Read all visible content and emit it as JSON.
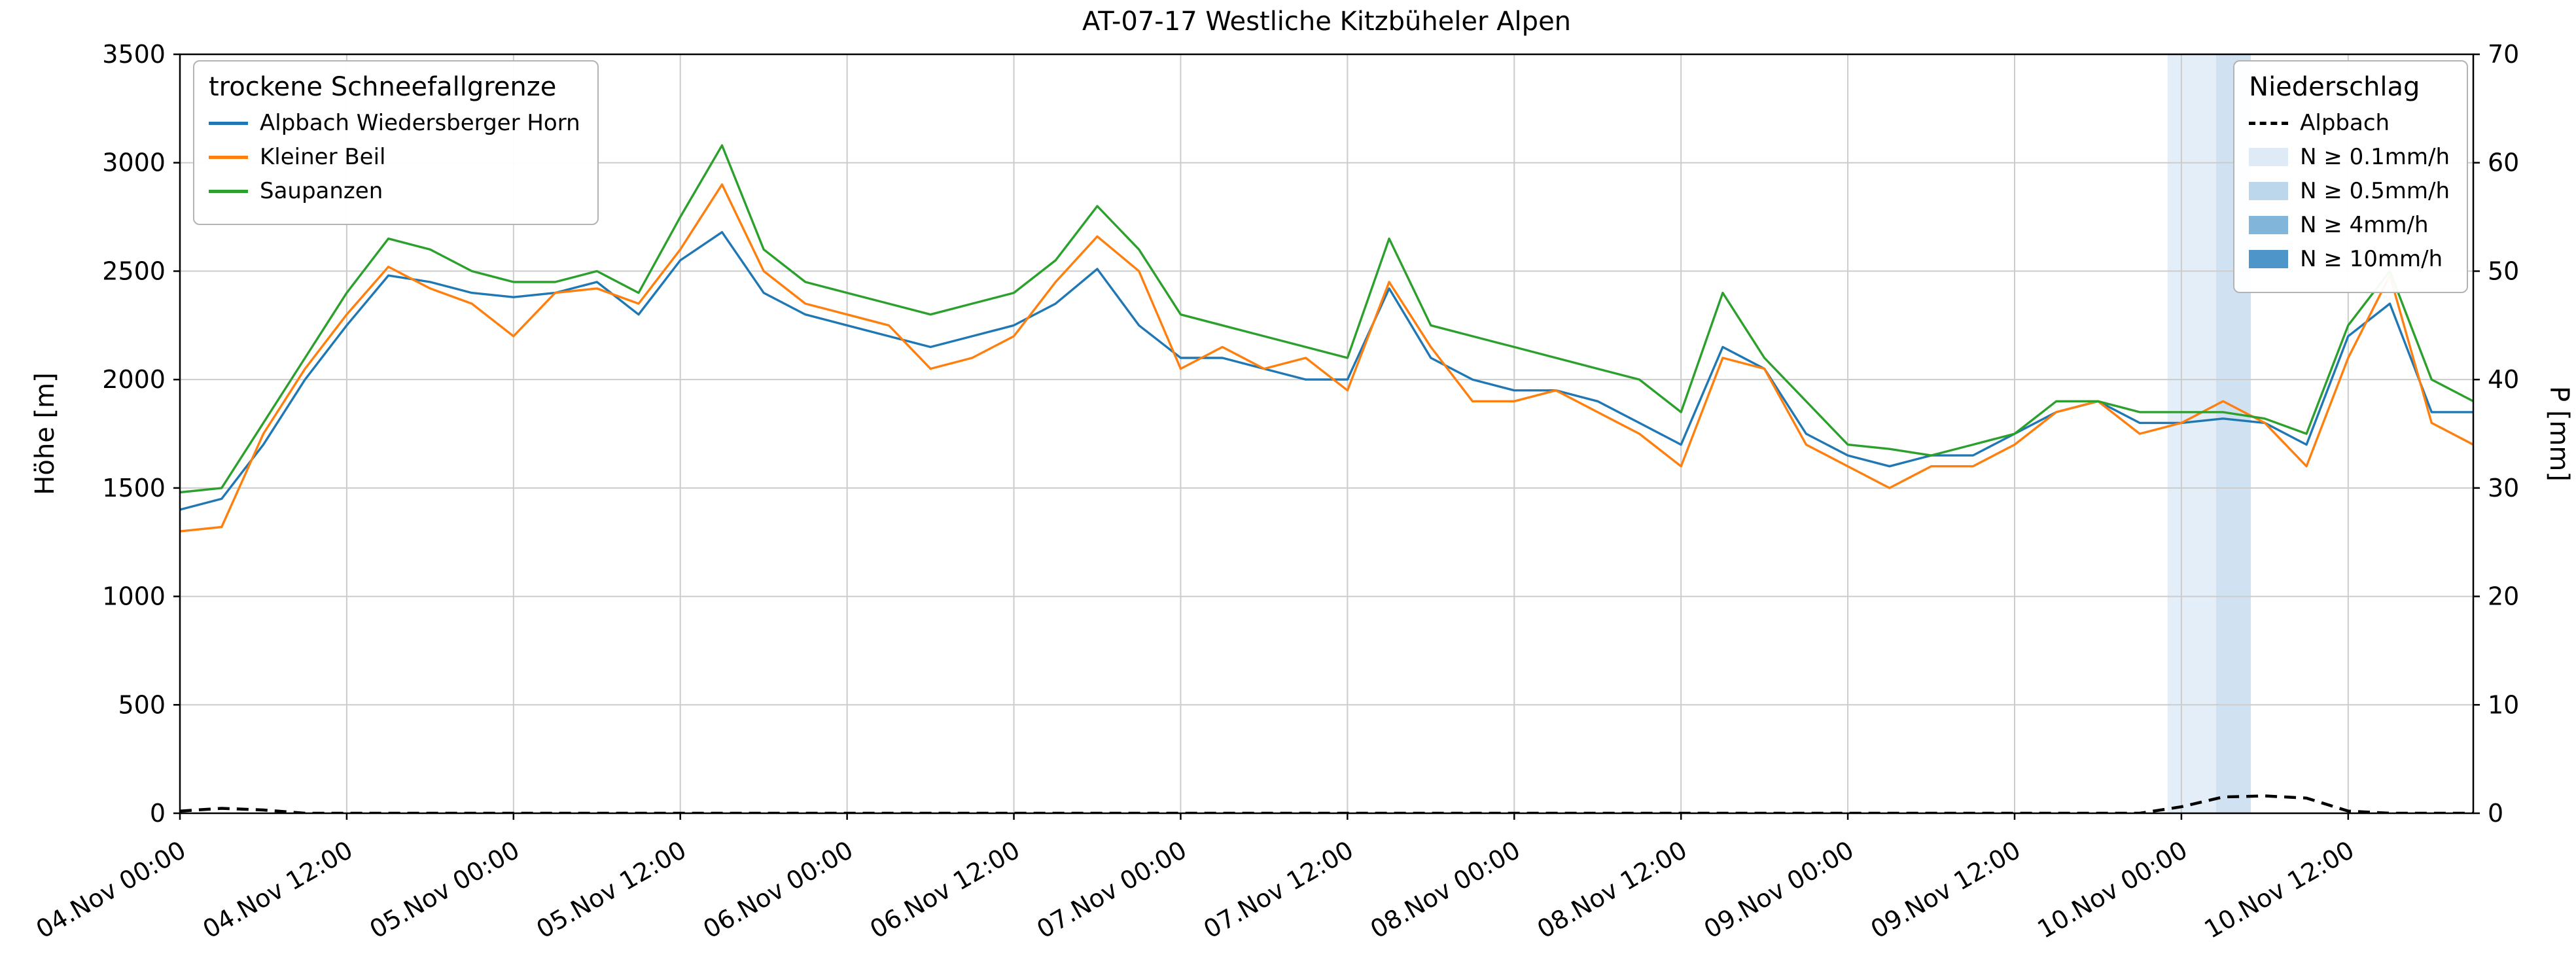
{
  "figure": {
    "title": "AT-07-17 Westliche Kitzbüheler Alpen"
  },
  "chart_data": {
    "type": "line",
    "title": "AT-07-17 Westliche Kitzbüheler Alpen",
    "xlabel": "",
    "ylabel_left": "Höhe [m]",
    "ylabel_right": "P [mm]",
    "ylim_left": [
      0,
      3500
    ],
    "ylim_right": [
      0,
      70
    ],
    "yticks_left": [
      0,
      500,
      1000,
      1500,
      2000,
      2500,
      3000,
      3500
    ],
    "yticks_right": [
      0,
      10,
      20,
      30,
      40,
      50,
      60,
      70
    ],
    "grid": true,
    "x_range_hours": [
      0,
      165
    ],
    "x_hours": [
      0,
      3,
      6,
      9,
      12,
      15,
      18,
      21,
      24,
      27,
      30,
      33,
      36,
      39,
      42,
      45,
      48,
      51,
      54,
      57,
      60,
      63,
      66,
      69,
      72,
      75,
      78,
      81,
      84,
      87,
      90,
      93,
      96,
      99,
      102,
      105,
      108,
      111,
      114,
      117,
      120,
      123,
      126,
      129,
      132,
      135,
      138,
      141,
      144,
      147,
      150,
      153,
      156,
      159,
      162,
      165
    ],
    "x_ticks": [
      {
        "hour": 0,
        "label": "04.Nov 00:00"
      },
      {
        "hour": 12,
        "label": "04.Nov 12:00"
      },
      {
        "hour": 24,
        "label": "05.Nov 00:00"
      },
      {
        "hour": 36,
        "label": "05.Nov 12:00"
      },
      {
        "hour": 48,
        "label": "06.Nov 00:00"
      },
      {
        "hour": 60,
        "label": "06.Nov 12:00"
      },
      {
        "hour": 72,
        "label": "07.Nov 00:00"
      },
      {
        "hour": 84,
        "label": "07.Nov 12:00"
      },
      {
        "hour": 96,
        "label": "08.Nov 00:00"
      },
      {
        "hour": 108,
        "label": "08.Nov 12:00"
      },
      {
        "hour": 120,
        "label": "09.Nov 00:00"
      },
      {
        "hour": 132,
        "label": "09.Nov 12:00"
      },
      {
        "hour": 144,
        "label": "10.Nov 00:00"
      },
      {
        "hour": 156,
        "label": "10.Nov 12:00"
      }
    ],
    "legend_left_title": "trockene Schneefallgrenze",
    "series": [
      {
        "id": "alpbach-wiedersberger-horn",
        "name": "Alpbach Wiedersberger Horn",
        "color": "#1f77b4",
        "axis": "left",
        "values": [
          1400,
          1450,
          1700,
          2000,
          2250,
          2480,
          2450,
          2400,
          2380,
          2400,
          2450,
          2300,
          2550,
          2680,
          2400,
          2300,
          2250,
          2200,
          2150,
          2200,
          2250,
          2350,
          2510,
          2250,
          2100,
          2100,
          2050,
          2000,
          2000,
          2420,
          2100,
          2000,
          1950,
          1950,
          1900,
          1800,
          1700,
          2150,
          2050,
          1750,
          1650,
          1600,
          1650,
          1650,
          1750,
          1850,
          1900,
          1800,
          1800,
          1820,
          1800,
          1700,
          2200,
          2350,
          1850,
          1850
        ]
      },
      {
        "id": "kleiner-beil",
        "name": "Kleiner Beil",
        "color": "#ff7f0e",
        "axis": "left",
        "values": [
          1300,
          1320,
          1750,
          2050,
          2300,
          2520,
          2420,
          2350,
          2200,
          2400,
          2420,
          2350,
          2600,
          2900,
          2500,
          2350,
          2300,
          2250,
          2050,
          2100,
          2200,
          2450,
          2660,
          2500,
          2050,
          2150,
          2050,
          2100,
          1950,
          2450,
          2150,
          1900,
          1900,
          1950,
          1850,
          1750,
          1600,
          2100,
          2050,
          1700,
          1600,
          1500,
          1600,
          1600,
          1700,
          1850,
          1900,
          1750,
          1800,
          1900,
          1800,
          1600,
          2100,
          2480,
          1800,
          1700
        ]
      },
      {
        "id": "saupanzen",
        "name": "Saupanzen",
        "color": "#2ca02c",
        "axis": "left",
        "values": [
          1480,
          1500,
          1800,
          2100,
          2400,
          2650,
          2600,
          2500,
          2450,
          2450,
          2500,
          2400,
          2750,
          3080,
          2600,
          2450,
          2400,
          2350,
          2300,
          2350,
          2400,
          2550,
          2800,
          2600,
          2300,
          2250,
          2200,
          2150,
          2100,
          2650,
          2250,
          2200,
          2150,
          2100,
          2050,
          2000,
          1850,
          2400,
          2100,
          1900,
          1700,
          1680,
          1650,
          1700,
          1750,
          1900,
          1900,
          1850,
          1850,
          1850,
          1820,
          1750,
          2250,
          2500,
          2000,
          1900
        ]
      }
    ],
    "legend_right_title": "Niederschlag",
    "precipitation": {
      "id": "alpbach",
      "name": "Alpbach",
      "color": "#000000",
      "style": "dashed",
      "axis": "right",
      "unit": "mm",
      "values": [
        0.2,
        0.45,
        0.3,
        0,
        0,
        0,
        0,
        0,
        0,
        0,
        0,
        0,
        0,
        0,
        0,
        0,
        0,
        0,
        0,
        0,
        0,
        0,
        0,
        0,
        0,
        0,
        0,
        0,
        0,
        0,
        0,
        0,
        0,
        0,
        0,
        0,
        0,
        0,
        0,
        0,
        0,
        0,
        0,
        0,
        0,
        0,
        0,
        0,
        0.6,
        1.5,
        1.6,
        1.4,
        0.2,
        0,
        0,
        0
      ]
    },
    "precip_bands": [
      {
        "label": "N ≥ 0.1mm/h",
        "color": "#deebf7"
      },
      {
        "label": "N ≥ 0.5mm/h",
        "color": "#bcd7eb"
      },
      {
        "label": "N ≥ 4mm/h",
        "color": "#82b5da"
      },
      {
        "label": "N ≥ 10mm/h",
        "color": "#4e96c9"
      }
    ],
    "precip_spans": [
      {
        "start_hour": 143,
        "end_hour": 146.5,
        "band": "N ≥ 0.1mm/h",
        "color": "#e4eef9"
      },
      {
        "start_hour": 146.5,
        "end_hour": 149,
        "band": "N ≥ 0.5mm/h",
        "color": "#d0e2f2"
      }
    ]
  }
}
